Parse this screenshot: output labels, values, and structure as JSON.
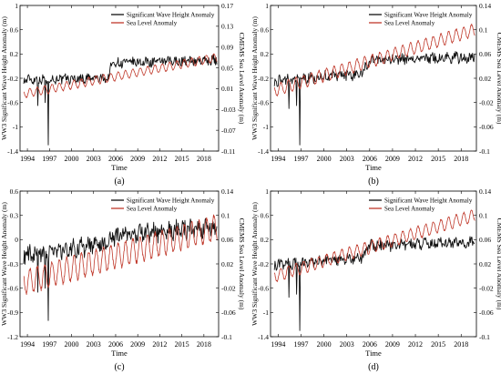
{
  "chart_data": [
    {
      "type": "line",
      "panel_label": "(a)",
      "xlabel": "Time",
      "ylabel_left": "WW3 Significant Wave Height Anomaly (m)",
      "ylabel_right": "CMEMS Sea Level Anomaly (m)",
      "xlim": [
        1993,
        2020
      ],
      "x_ticks": [
        1994,
        1997,
        2000,
        2003,
        2006,
        2009,
        2012,
        2015,
        2018
      ],
      "x_tick_labels": [
        "1994",
        "1997",
        "2000",
        "2003",
        "2006",
        "2009",
        "2012",
        "2015",
        "2018"
      ],
      "ylim_left": [
        -1.4,
        1.0
      ],
      "yticks_left": [
        -1.4,
        -1.0,
        -0.6,
        -0.2,
        0.2,
        0.6,
        1.0
      ],
      "ytick_labels_left": [
        "-1.4",
        "-1",
        "-0.6",
        "-0.2",
        "0.2",
        "0.6",
        "1"
      ],
      "ylim_right": [
        -0.11,
        0.17
      ],
      "yticks_right": [
        -0.11,
        -0.07,
        -0.03,
        0.01,
        0.05,
        0.09,
        0.13,
        0.17
      ],
      "ytick_labels_right": [
        "-0.11",
        "-0.07",
        "-0.03",
        "0.01",
        "0.05",
        "0.09",
        "0.13",
        "0.17"
      ],
      "legend": "top-right",
      "series": [
        {
          "name": "Significant Wave Height Anomaly",
          "axis": "left",
          "color": "#111111",
          "start": 1993.5,
          "end": 2019.8,
          "trend": [
            [
              1993.5,
              -0.22
            ],
            [
              2005,
              -0.2
            ],
            [
              2005.5,
              0.05
            ],
            [
              2019.8,
              0.1
            ]
          ],
          "noise": 0.07,
          "dips": [
            [
              1995.4,
              -0.65
            ],
            [
              1996.4,
              -0.6
            ],
            [
              1996.8,
              -1.3
            ]
          ]
        },
        {
          "name": "Sea Level Anomaly",
          "axis": "right",
          "color": "#c0392b",
          "start": 1993.5,
          "end": 2019.8,
          "trend": [
            [
              1993.5,
              0.0
            ],
            [
              2019.8,
              0.07
            ]
          ],
          "amplitude": 0.008
        }
      ]
    },
    {
      "type": "line",
      "panel_label": "(b)",
      "xlabel": "Time",
      "ylabel_left": "WW3 Significant Wave Height Anomaly (m)",
      "ylabel_right": "CMEMS Sea Level Anomaly (m)",
      "xlim": [
        1993,
        2020
      ],
      "x_ticks": [
        1994,
        1997,
        2000,
        2003,
        2006,
        2009,
        2012,
        2015,
        2018
      ],
      "x_tick_labels": [
        "1994",
        "1997",
        "2000",
        "2003",
        "2006",
        "2009",
        "2012",
        "2015",
        "2018"
      ],
      "ylim_left": [
        -1.4,
        1.0
      ],
      "yticks_left": [
        -1.4,
        -1.0,
        -0.6,
        -0.2,
        0.2,
        0.6,
        1.0
      ],
      "ytick_labels_left": [
        "-1.4",
        "-1",
        "-0.6",
        "-0.2",
        "0.2",
        "0.6",
        "1"
      ],
      "ylim_right": [
        -0.1,
        0.14
      ],
      "yticks_right": [
        -0.1,
        -0.06,
        -0.02,
        0.02,
        0.06,
        0.1,
        0.14
      ],
      "ytick_labels_right": [
        "-0.1",
        "-0.06",
        "-0.02",
        "0.02",
        "0.06",
        "0.1",
        "0.14"
      ],
      "legend": "top-right",
      "series": [
        {
          "name": "Significant Wave Height Anomaly",
          "axis": "left",
          "color": "#111111",
          "start": 1993.5,
          "end": 2019.8,
          "trend": [
            [
              1993.5,
              -0.25
            ],
            [
              2005,
              -0.12
            ],
            [
              2006,
              0.1
            ],
            [
              2019.8,
              0.15
            ]
          ],
          "noise": 0.08,
          "dips": [
            [
              1995.4,
              -0.7
            ],
            [
              1996.4,
              -0.65
            ],
            [
              1996.8,
              -1.3
            ]
          ]
        },
        {
          "name": "Sea Level Anomaly",
          "axis": "right",
          "color": "#c0392b",
          "start": 1993.5,
          "end": 2019.8,
          "trend": [
            [
              1993.5,
              0.0
            ],
            [
              2019.8,
              0.1
            ]
          ],
          "amplitude": 0.01
        }
      ]
    },
    {
      "type": "line",
      "panel_label": "(c)",
      "xlabel": "Time",
      "ylabel_left": "WW3 Significant Wave Height Anomaly (m)",
      "ylabel_right": "CMEMS Sea Level Anomaly (m)",
      "xlim": [
        1993,
        2020
      ],
      "x_ticks": [
        1994,
        1997,
        2000,
        2003,
        2006,
        2009,
        2012,
        2015,
        2018
      ],
      "x_tick_labels": [
        "1994",
        "1997",
        "2000",
        "2003",
        "2006",
        "2009",
        "2012",
        "2015",
        "2018"
      ],
      "ylim_left": [
        -1.2,
        0.6
      ],
      "yticks_left": [
        -1.2,
        -0.9,
        -0.6,
        -0.3,
        0,
        0.3,
        0.6
      ],
      "ytick_labels_left": [
        "-1.2",
        "-0.9",
        "-0.6",
        "-0.3",
        "0",
        "0.3",
        "0.6"
      ],
      "ylim_right": [
        -0.1,
        0.14
      ],
      "yticks_right": [
        -0.1,
        -0.06,
        -0.02,
        0.02,
        0.06,
        0.1,
        0.14
      ],
      "ytick_labels_right": [
        "-0.1",
        "-0.06",
        "-0.02",
        "0.02",
        "0.06",
        "0.1",
        "0.14"
      ],
      "legend": "top-right",
      "series": [
        {
          "name": "Significant Wave Height Anomaly",
          "axis": "left",
          "color": "#111111",
          "start": 1993.5,
          "end": 2019.8,
          "trend": [
            [
              1993.5,
              -0.2
            ],
            [
              2005,
              -0.05
            ],
            [
              2006,
              0.05
            ],
            [
              2019.8,
              0.15
            ]
          ],
          "noise": 0.1,
          "dips": [
            [
              1995.4,
              -0.65
            ],
            [
              1996.4,
              -0.6
            ],
            [
              1996.8,
              -1.0
            ]
          ]
        },
        {
          "name": "Sea Level Anomaly",
          "axis": "right",
          "color": "#c0392b",
          "start": 1993.5,
          "end": 2019.8,
          "trend": [
            [
              1993.5,
              -0.01
            ],
            [
              2019.8,
              0.08
            ]
          ],
          "amplitude": 0.02
        }
      ]
    },
    {
      "type": "line",
      "panel_label": "(d)",
      "xlabel": "Time",
      "ylabel_left": "WW3 Significant Wave Height Anomaly (m)",
      "ylabel_right": "CMEMS Sea Level Anomaly (m)",
      "xlim": [
        1993,
        2020
      ],
      "x_ticks": [
        1994,
        1997,
        2000,
        2003,
        2006,
        2009,
        2012,
        2015,
        2018
      ],
      "x_tick_labels": [
        "1994",
        "1997",
        "2000",
        "2003",
        "2006",
        "2009",
        "2012",
        "2015",
        "2018"
      ],
      "ylim_left": [
        -1.4,
        1.0
      ],
      "yticks_left": [
        -1.4,
        -1.0,
        -0.6,
        -0.2,
        0.2,
        0.6,
        1.0
      ],
      "ytick_labels_left": [
        "-1.4",
        "-1",
        "-0.6",
        "-0.2",
        "0.2",
        "0.6",
        "1"
      ],
      "ylim_right": [
        -0.1,
        0.14
      ],
      "yticks_right": [
        -0.1,
        -0.06,
        -0.02,
        0.02,
        0.06,
        0.1,
        0.14
      ],
      "ytick_labels_right": [
        "-0.1",
        "-0.06",
        "-0.02",
        "0.02",
        "0.06",
        "0.1",
        "0.14"
      ],
      "legend": "top-right",
      "series": [
        {
          "name": "Significant Wave Height Anomaly",
          "axis": "left",
          "color": "#111111",
          "start": 1993.5,
          "end": 2019.8,
          "trend": [
            [
              1993.5,
              -0.22
            ],
            [
              2005,
              -0.1
            ],
            [
              2006,
              0.1
            ],
            [
              2019.8,
              0.15
            ]
          ],
          "noise": 0.08,
          "dips": [
            [
              1995.4,
              -0.75
            ],
            [
              1996.4,
              -0.7
            ],
            [
              1996.8,
              -1.3
            ]
          ]
        },
        {
          "name": "Sea Level Anomaly",
          "axis": "right",
          "color": "#c0392b",
          "start": 1993.5,
          "end": 2019.8,
          "trend": [
            [
              1993.5,
              0.0
            ],
            [
              2019.8,
              0.1
            ]
          ],
          "amplitude": 0.01
        }
      ]
    }
  ]
}
